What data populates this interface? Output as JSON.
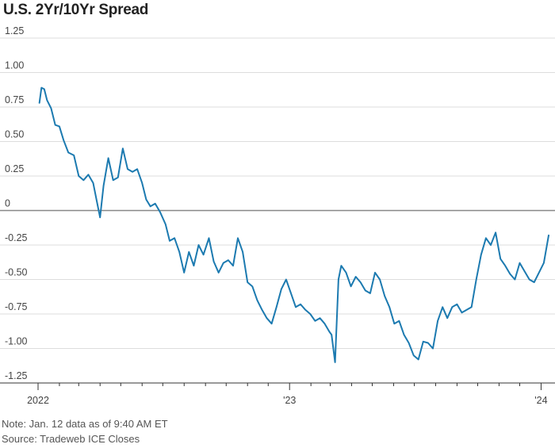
{
  "title": "U.S. 2Yr/10Yr Spread",
  "notes": {
    "note": "Note: Jan. 12 data as of 9:40 AM ET",
    "source": "Source: Tradeweb ICE Closes"
  },
  "colors": {
    "line": "#1c7ab0",
    "zero_line": "#888888",
    "grid": "#dddddd"
  },
  "chart_data": {
    "type": "line",
    "title": "U.S. 2Yr/10Yr Spread",
    "xlabel": "",
    "ylabel": "",
    "ylim": [
      -1.25,
      1.25
    ],
    "yticks": [
      1.25,
      1.0,
      0.75,
      0.5,
      0.25,
      0,
      -0.25,
      -0.5,
      -0.75,
      -1.0,
      -1.25
    ],
    "ytick_labels": [
      "1.25",
      "1.00",
      "0.75",
      "0.50",
      "0.25",
      "0",
      "-0.25",
      "-0.50",
      "-0.75",
      "-1.00",
      "-1.25"
    ],
    "xlim": [
      "2022-01-01",
      "2024-01-12"
    ],
    "xtick_labels": [
      {
        "date": "2022-01-01",
        "label": "2022"
      },
      {
        "date": "2023-01-01",
        "label": "'23"
      },
      {
        "date": "2024-01-01",
        "label": "'24"
      }
    ],
    "grid": true,
    "series": [
      {
        "x": [
          "2022-01-03",
          "2022-01-06",
          "2022-01-10",
          "2022-01-14",
          "2022-01-20",
          "2022-01-26",
          "2022-02-01",
          "2022-02-07",
          "2022-02-14",
          "2022-02-22",
          "2022-03-01",
          "2022-03-08",
          "2022-03-15",
          "2022-03-22",
          "2022-03-28",
          "2022-04-01",
          "2022-04-06",
          "2022-04-13",
          "2022-04-20",
          "2022-04-27",
          "2022-05-04",
          "2022-05-11",
          "2022-05-18",
          "2022-05-25",
          "2022-06-01",
          "2022-06-07",
          "2022-06-13",
          "2022-06-20",
          "2022-06-27",
          "2022-07-05",
          "2022-07-11",
          "2022-07-18",
          "2022-07-25",
          "2022-08-01",
          "2022-08-08",
          "2022-08-15",
          "2022-08-22",
          "2022-08-29",
          "2022-09-06",
          "2022-09-13",
          "2022-09-20",
          "2022-09-27",
          "2022-10-04",
          "2022-10-11",
          "2022-10-18",
          "2022-10-25",
          "2022-11-01",
          "2022-11-08",
          "2022-11-15",
          "2022-11-22",
          "2022-11-29",
          "2022-12-06",
          "2022-12-13",
          "2022-12-20",
          "2022-12-27",
          "2023-01-03",
          "2023-01-10",
          "2023-01-17",
          "2023-01-24",
          "2023-01-31",
          "2023-02-07",
          "2023-02-14",
          "2023-02-21",
          "2023-02-28",
          "2023-03-03",
          "2023-03-08",
          "2023-03-13",
          "2023-03-17",
          "2023-03-24",
          "2023-03-31",
          "2023-04-07",
          "2023-04-14",
          "2023-04-21",
          "2023-04-28",
          "2023-05-05",
          "2023-05-12",
          "2023-05-19",
          "2023-05-26",
          "2023-06-02",
          "2023-06-09",
          "2023-06-16",
          "2023-06-23",
          "2023-06-30",
          "2023-07-07",
          "2023-07-14",
          "2023-07-21",
          "2023-07-28",
          "2023-08-04",
          "2023-08-11",
          "2023-08-18",
          "2023-08-25",
          "2023-09-01",
          "2023-09-08",
          "2023-09-15",
          "2023-09-22",
          "2023-09-29",
          "2023-10-06",
          "2023-10-13",
          "2023-10-20",
          "2023-10-27",
          "2023-11-03",
          "2023-11-10",
          "2023-11-17",
          "2023-11-24",
          "2023-12-01",
          "2023-12-08",
          "2023-12-15",
          "2023-12-22",
          "2023-12-29",
          "2024-01-05",
          "2024-01-12"
        ],
        "y": [
          0.78,
          0.89,
          0.88,
          0.8,
          0.74,
          0.62,
          0.61,
          0.51,
          0.42,
          0.4,
          0.25,
          0.22,
          0.26,
          0.2,
          0.05,
          -0.05,
          0.18,
          0.38,
          0.22,
          0.24,
          0.45,
          0.3,
          0.28,
          0.3,
          0.2,
          0.08,
          0.03,
          0.05,
          -0.01,
          -0.1,
          -0.22,
          -0.2,
          -0.3,
          -0.45,
          -0.3,
          -0.4,
          -0.25,
          -0.32,
          -0.2,
          -0.37,
          -0.45,
          -0.38,
          -0.36,
          -0.4,
          -0.2,
          -0.3,
          -0.52,
          -0.55,
          -0.65,
          -0.72,
          -0.78,
          -0.82,
          -0.7,
          -0.57,
          -0.5,
          -0.6,
          -0.7,
          -0.68,
          -0.72,
          -0.75,
          -0.8,
          -0.78,
          -0.82,
          -0.88,
          -0.9,
          -1.1,
          -0.5,
          -0.4,
          -0.45,
          -0.55,
          -0.48,
          -0.52,
          -0.58,
          -0.6,
          -0.45,
          -0.5,
          -0.62,
          -0.7,
          -0.82,
          -0.8,
          -0.9,
          -0.96,
          -1.05,
          -1.08,
          -0.95,
          -0.96,
          -1.0,
          -0.8,
          -0.7,
          -0.78,
          -0.7,
          -0.68,
          -0.74,
          -0.72,
          -0.7,
          -0.5,
          -0.32,
          -0.2,
          -0.25,
          -0.16,
          -0.35,
          -0.4,
          -0.46,
          -0.5,
          -0.38,
          -0.44,
          -0.5,
          -0.52,
          -0.45,
          -0.38,
          -0.18
        ]
      }
    ]
  }
}
